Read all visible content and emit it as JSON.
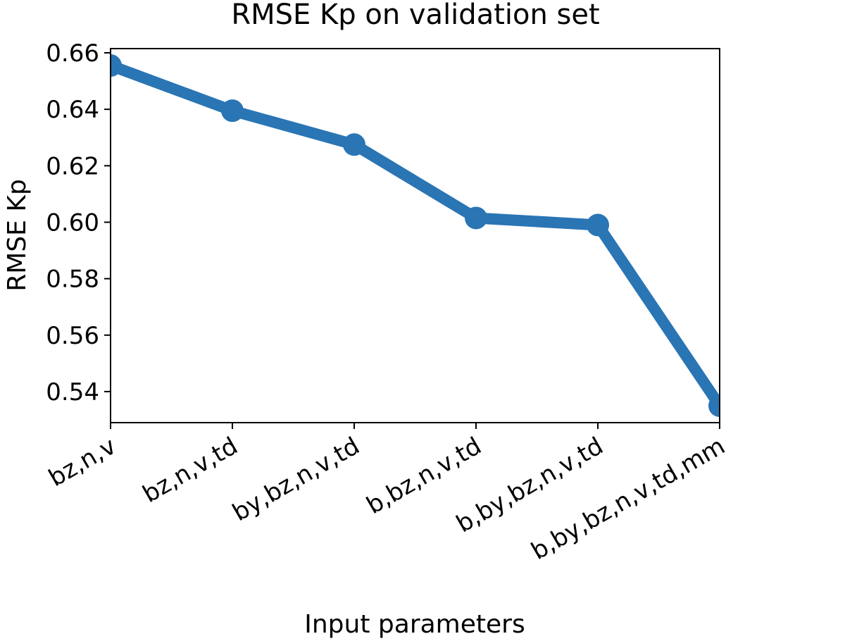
{
  "chart_data": {
    "type": "line",
    "title": "RMSE Kp on validation set",
    "xlabel": "Input parameters",
    "ylabel": "RMSE Kp",
    "categories": [
      "bz,n,v",
      "bz,n,v,td",
      "by,bz,n,v,td",
      "b,bz,n,v,td",
      "b,by,bz,n,v,td",
      "b,by,bz,n,v,td,mm"
    ],
    "series": [
      {
        "name": "RMSE Kp",
        "values": [
          0.6555,
          0.6395,
          0.6275,
          0.6015,
          0.599,
          0.535
        ],
        "color": "#2a75b4"
      }
    ],
    "ylim": [
      0.529,
      0.6615
    ],
    "yticks": [
      0.54,
      0.56,
      0.58,
      0.6,
      0.62,
      0.64,
      0.66
    ],
    "ytick_labels": [
      "0.54",
      "0.56",
      "0.58",
      "0.60",
      "0.62",
      "0.64",
      "0.66"
    ],
    "grid": false
  }
}
